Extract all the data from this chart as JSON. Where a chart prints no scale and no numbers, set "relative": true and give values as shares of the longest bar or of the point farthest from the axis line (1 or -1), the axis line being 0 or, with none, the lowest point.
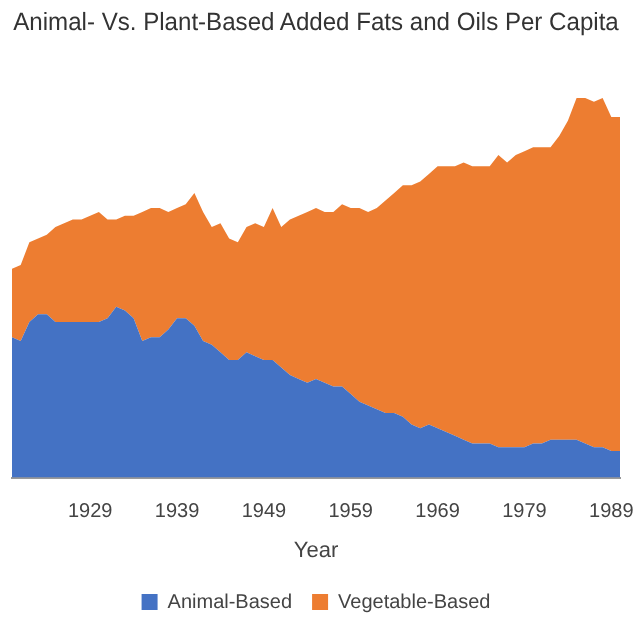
{
  "chart_data": {
    "type": "area",
    "title": "Animal- Vs. Plant-Based Added Fats and Oils Per Capita",
    "xlabel": "Year",
    "relative": true,
    "stacked": true,
    "legend": "bottom",
    "grid": false,
    "categories": [
      null,
      null,
      null,
      null,
      null,
      null,
      null,
      null,
      null,
      "1929",
      null,
      null,
      null,
      null,
      null,
      null,
      null,
      null,
      null,
      "1939",
      null,
      null,
      null,
      null,
      null,
      null,
      null,
      null,
      null,
      "1949",
      null,
      null,
      null,
      null,
      null,
      null,
      null,
      null,
      null,
      "1959",
      null,
      null,
      null,
      null,
      null,
      null,
      null,
      null,
      null,
      "1969",
      null,
      null,
      null,
      null,
      null,
      null,
      null,
      null,
      null,
      "1979",
      null,
      null,
      null,
      null,
      null,
      null,
      null,
      null,
      null,
      "1989",
      null
    ],
    "series": [
      {
        "name": "Animal-Based",
        "color": "#4472c4",
        "values": [
          0.37,
          0.36,
          0.41,
          0.43,
          0.43,
          0.41,
          0.41,
          0.41,
          0.41,
          0.41,
          0.41,
          0.42,
          0.45,
          0.44,
          0.42,
          0.36,
          0.37,
          0.37,
          0.39,
          0.42,
          0.42,
          0.4,
          0.36,
          0.35,
          0.33,
          0.31,
          0.31,
          0.33,
          0.32,
          0.31,
          0.31,
          0.29,
          0.27,
          0.26,
          0.25,
          0.26,
          0.25,
          0.24,
          0.24,
          0.22,
          0.2,
          0.19,
          0.18,
          0.17,
          0.17,
          0.16,
          0.14,
          0.13,
          0.14,
          0.13,
          0.12,
          0.11,
          0.1,
          0.09,
          0.09,
          0.09,
          0.08,
          0.08,
          0.08,
          0.08,
          0.09,
          0.09,
          0.1,
          0.1,
          0.1,
          0.1,
          0.09,
          0.08,
          0.08,
          0.07,
          0.07
        ]
      },
      {
        "name": "Vegetable-Based",
        "color": "#ed7d31",
        "values": [
          0.18,
          0.2,
          0.21,
          0.2,
          0.21,
          0.25,
          0.26,
          0.27,
          0.27,
          0.28,
          0.29,
          0.26,
          0.23,
          0.25,
          0.27,
          0.34,
          0.34,
          0.34,
          0.31,
          0.29,
          0.3,
          0.35,
          0.34,
          0.31,
          0.34,
          0.32,
          0.31,
          0.33,
          0.35,
          0.35,
          0.4,
          0.37,
          0.41,
          0.43,
          0.45,
          0.45,
          0.45,
          0.46,
          0.48,
          0.49,
          0.51,
          0.51,
          0.53,
          0.56,
          0.58,
          0.61,
          0.63,
          0.65,
          0.66,
          0.69,
          0.7,
          0.71,
          0.73,
          0.73,
          0.73,
          0.73,
          0.77,
          0.75,
          0.77,
          0.78,
          0.78,
          0.78,
          0.77,
          0.8,
          0.84,
          0.9,
          0.91,
          0.91,
          0.92,
          0.88,
          0.88
        ]
      }
    ]
  }
}
